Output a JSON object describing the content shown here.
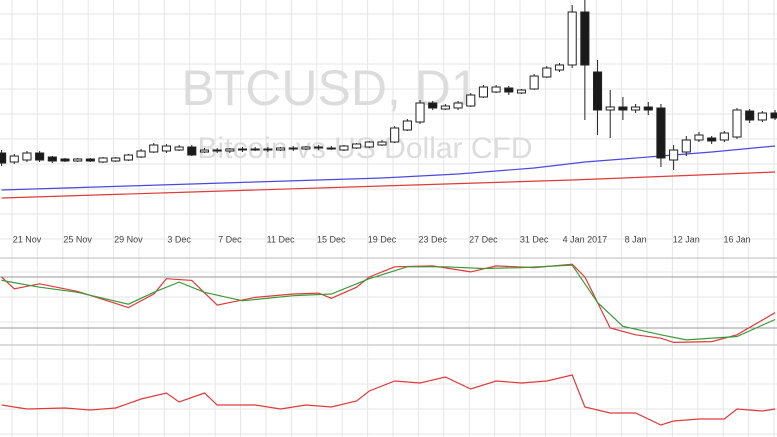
{
  "chart_data": [
    {
      "type": "candlestick",
      "title": "BTCUSD, D1",
      "subtitle": "Bitcoin vs US Dollar CFD",
      "categories": [
        null,
        null,
        "21 Nov",
        null,
        null,
        null,
        "25 Nov",
        null,
        null,
        null,
        "29 Nov",
        null,
        null,
        null,
        "3 Dec",
        null,
        null,
        null,
        "7 Dec",
        null,
        null,
        null,
        "11 Dec",
        null,
        null,
        null,
        "15 Dec",
        null,
        null,
        null,
        "19 Dec",
        null,
        null,
        null,
        "23 Dec",
        null,
        null,
        null,
        "27 Dec",
        null,
        null,
        null,
        "31 Dec",
        null,
        null,
        null,
        "4 Jan 2017",
        null,
        null,
        null,
        "8 Jan",
        null,
        null,
        null,
        "12 Jan",
        null,
        null,
        null,
        "16 Jan",
        null,
        null,
        null
      ],
      "open": [
        97,
        88,
        90,
        97,
        93,
        91,
        89,
        91,
        88,
        89,
        90,
        93,
        98,
        99,
        100,
        103,
        98,
        100,
        99,
        101,
        100,
        101,
        100,
        102,
        101,
        103,
        102,
        100,
        102,
        103,
        105,
        108,
        120,
        128,
        147,
        141,
        142,
        144,
        153,
        158,
        162,
        157,
        161,
        173,
        180,
        185,
        238,
        178,
        140,
        143,
        140,
        143,
        142,
        90,
        98,
        110,
        112,
        110,
        113,
        139,
        130,
        137
      ],
      "high": [
        100,
        96,
        99,
        99,
        94,
        92,
        92,
        92,
        93,
        93,
        96,
        101,
        107,
        106,
        105,
        105,
        102,
        102,
        102,
        103,
        103,
        103,
        103,
        104,
        104,
        105,
        104,
        105,
        107,
        109,
        110,
        124,
        131,
        150,
        149,
        146,
        149,
        157,
        165,
        165,
        164,
        161,
        176,
        184,
        187,
        245,
        250,
        190,
        160,
        153,
        146,
        148,
        146,
        105,
        114,
        118,
        114,
        119,
        142,
        141,
        139,
        140
      ],
      "low": [
        84,
        86,
        88,
        88,
        87,
        88,
        88,
        88,
        87,
        88,
        89,
        92,
        97,
        97,
        99,
        94,
        97,
        97,
        97,
        98,
        99,
        98,
        99,
        99,
        100,
        100,
        100,
        99,
        101,
        102,
        104,
        107,
        119,
        126,
        140,
        140,
        140,
        143,
        152,
        157,
        155,
        156,
        160,
        172,
        178,
        182,
        130,
        115,
        112,
        130,
        137,
        135,
        83,
        80,
        94,
        108,
        106,
        108,
        111,
        127,
        128,
        130
      ],
      "close": [
        87,
        94,
        97,
        90,
        89,
        89,
        91,
        89,
        92,
        92,
        95,
        99,
        105,
        104,
        103,
        95,
        100,
        99,
        101,
        100,
        101,
        100,
        102,
        101,
        103,
        102,
        101,
        104,
        106,
        108,
        108,
        122,
        129,
        147,
        142,
        144,
        147,
        155,
        163,
        163,
        158,
        160,
        174,
        182,
        185,
        238,
        185,
        140,
        143,
        140,
        143,
        140,
        92,
        100,
        110,
        115,
        109,
        117,
        140,
        130,
        137,
        132
      ],
      "up_color": "#ffffff",
      "down_color": "#1a1a1a",
      "ylim": [
        0,
        250
      ],
      "grid": true,
      "lines": [
        {
          "color": "#4a4adf",
          "x": [
            0,
            10,
            20,
            30,
            36,
            42,
            46,
            52,
            56,
            61
          ],
          "values": [
            60,
            64,
            68,
            72,
            76,
            82,
            88,
            94,
            98,
            104
          ]
        },
        {
          "color": "#e03a3a",
          "x": [
            0,
            15,
            30,
            45,
            61
          ],
          "values": [
            52,
            58,
            64,
            70,
            78
          ]
        }
      ]
    },
    {
      "type": "line",
      "xlim": [
        -0.5,
        61.5
      ],
      "ylim": [
        0,
        100
      ],
      "hlines": [
        80,
        20
      ],
      "grid": true,
      "series": [
        {
          "color": "#e03a3a",
          "x": [
            0,
            1,
            3,
            6,
            9,
            10,
            12,
            13,
            15,
            17,
            20,
            23,
            25,
            26,
            28,
            29,
            31,
            34,
            37,
            39,
            42,
            45,
            46,
            48,
            50,
            52,
            53,
            56,
            58,
            61
          ],
          "values": [
            80,
            66,
            72,
            63,
            49,
            44,
            60,
            78,
            76,
            47,
            56,
            60,
            61,
            55,
            68,
            80,
            92,
            93,
            86,
            93,
            91,
            95,
            80,
            20,
            12,
            8,
            3,
            4,
            12,
            38
          ]
        },
        {
          "color": "#3a9a3a",
          "x": [
            0,
            3,
            6,
            10,
            12,
            14,
            16,
            19,
            23,
            26,
            29,
            32,
            35,
            38,
            41,
            45,
            47,
            49,
            52,
            54,
            58,
            61
          ],
          "values": [
            76,
            68,
            62,
            48,
            62,
            74,
            62,
            52,
            58,
            60,
            78,
            92,
            92,
            90,
            91,
            94,
            50,
            22,
            12,
            6,
            10,
            30
          ]
        }
      ]
    },
    {
      "type": "line",
      "xlim": [
        -0.5,
        61.5
      ],
      "ylim": [
        0,
        92
      ],
      "grid": true,
      "series": [
        {
          "color": "#e03a3a",
          "x": [
            0,
            2,
            5,
            7,
            9,
            11,
            13,
            14,
            16,
            17,
            20,
            22,
            24,
            26,
            28,
            29,
            31,
            33,
            35,
            37,
            39,
            41,
            43,
            45,
            46,
            48,
            50,
            52,
            53,
            55,
            57,
            58,
            60,
            61
          ],
          "values": [
            32,
            28,
            29,
            27,
            29,
            38,
            44,
            35,
            44,
            32,
            32,
            28,
            32,
            30,
            36,
            46,
            56,
            54,
            60,
            48,
            56,
            54,
            56,
            62,
            30,
            24,
            24,
            12,
            16,
            18,
            18,
            28,
            26,
            28
          ]
        }
      ]
    }
  ]
}
